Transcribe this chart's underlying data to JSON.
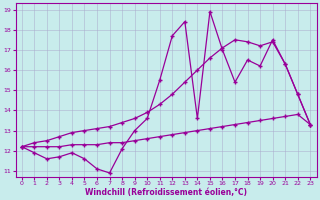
{
  "xlabel": "Windchill (Refroidissement éolien,°C)",
  "bg_color": "#c8ecec",
  "line_color": "#990099",
  "grid_color": "#aaaacc",
  "xlim": [
    -0.5,
    23.5
  ],
  "ylim": [
    10.7,
    19.3
  ],
  "xticks": [
    0,
    1,
    2,
    3,
    4,
    5,
    6,
    7,
    8,
    9,
    10,
    11,
    12,
    13,
    14,
    15,
    16,
    17,
    18,
    19,
    20,
    21,
    22,
    23
  ],
  "yticks": [
    11,
    12,
    13,
    14,
    15,
    16,
    17,
    18,
    19
  ],
  "line1_x": [
    0,
    1,
    2,
    3,
    4,
    5,
    6,
    7,
    8,
    9,
    10,
    11,
    12,
    13,
    14,
    15,
    16,
    17,
    18,
    19,
    20,
    21,
    22,
    23
  ],
  "line1_y": [
    12.2,
    11.9,
    11.6,
    11.7,
    11.9,
    11.6,
    11.1,
    10.9,
    12.1,
    13.0,
    13.6,
    15.5,
    17.7,
    18.4,
    13.6,
    18.9,
    17.0,
    15.4,
    16.5,
    16.2,
    17.5,
    16.3,
    14.8,
    13.3
  ],
  "line2_x": [
    0,
    1,
    2,
    3,
    4,
    5,
    6,
    7,
    8,
    9,
    10,
    11,
    12,
    13,
    14,
    15,
    16,
    17,
    18,
    19,
    20,
    21,
    22,
    23
  ],
  "line2_y": [
    12.2,
    12.4,
    12.5,
    12.7,
    12.9,
    13.0,
    13.1,
    13.2,
    13.4,
    13.6,
    13.9,
    14.3,
    14.8,
    15.4,
    16.0,
    16.6,
    17.1,
    17.5,
    17.4,
    17.2,
    17.4,
    16.3,
    14.8,
    13.3
  ],
  "line3_x": [
    0,
    1,
    2,
    3,
    4,
    5,
    6,
    7,
    8,
    9,
    10,
    11,
    12,
    13,
    14,
    15,
    16,
    17,
    18,
    19,
    20,
    21,
    22,
    23
  ],
  "line3_y": [
    12.2,
    12.2,
    12.2,
    12.2,
    12.3,
    12.3,
    12.3,
    12.4,
    12.4,
    12.5,
    12.6,
    12.7,
    12.8,
    12.9,
    13.0,
    13.1,
    13.2,
    13.3,
    13.4,
    13.5,
    13.6,
    13.7,
    13.8,
    13.3
  ]
}
